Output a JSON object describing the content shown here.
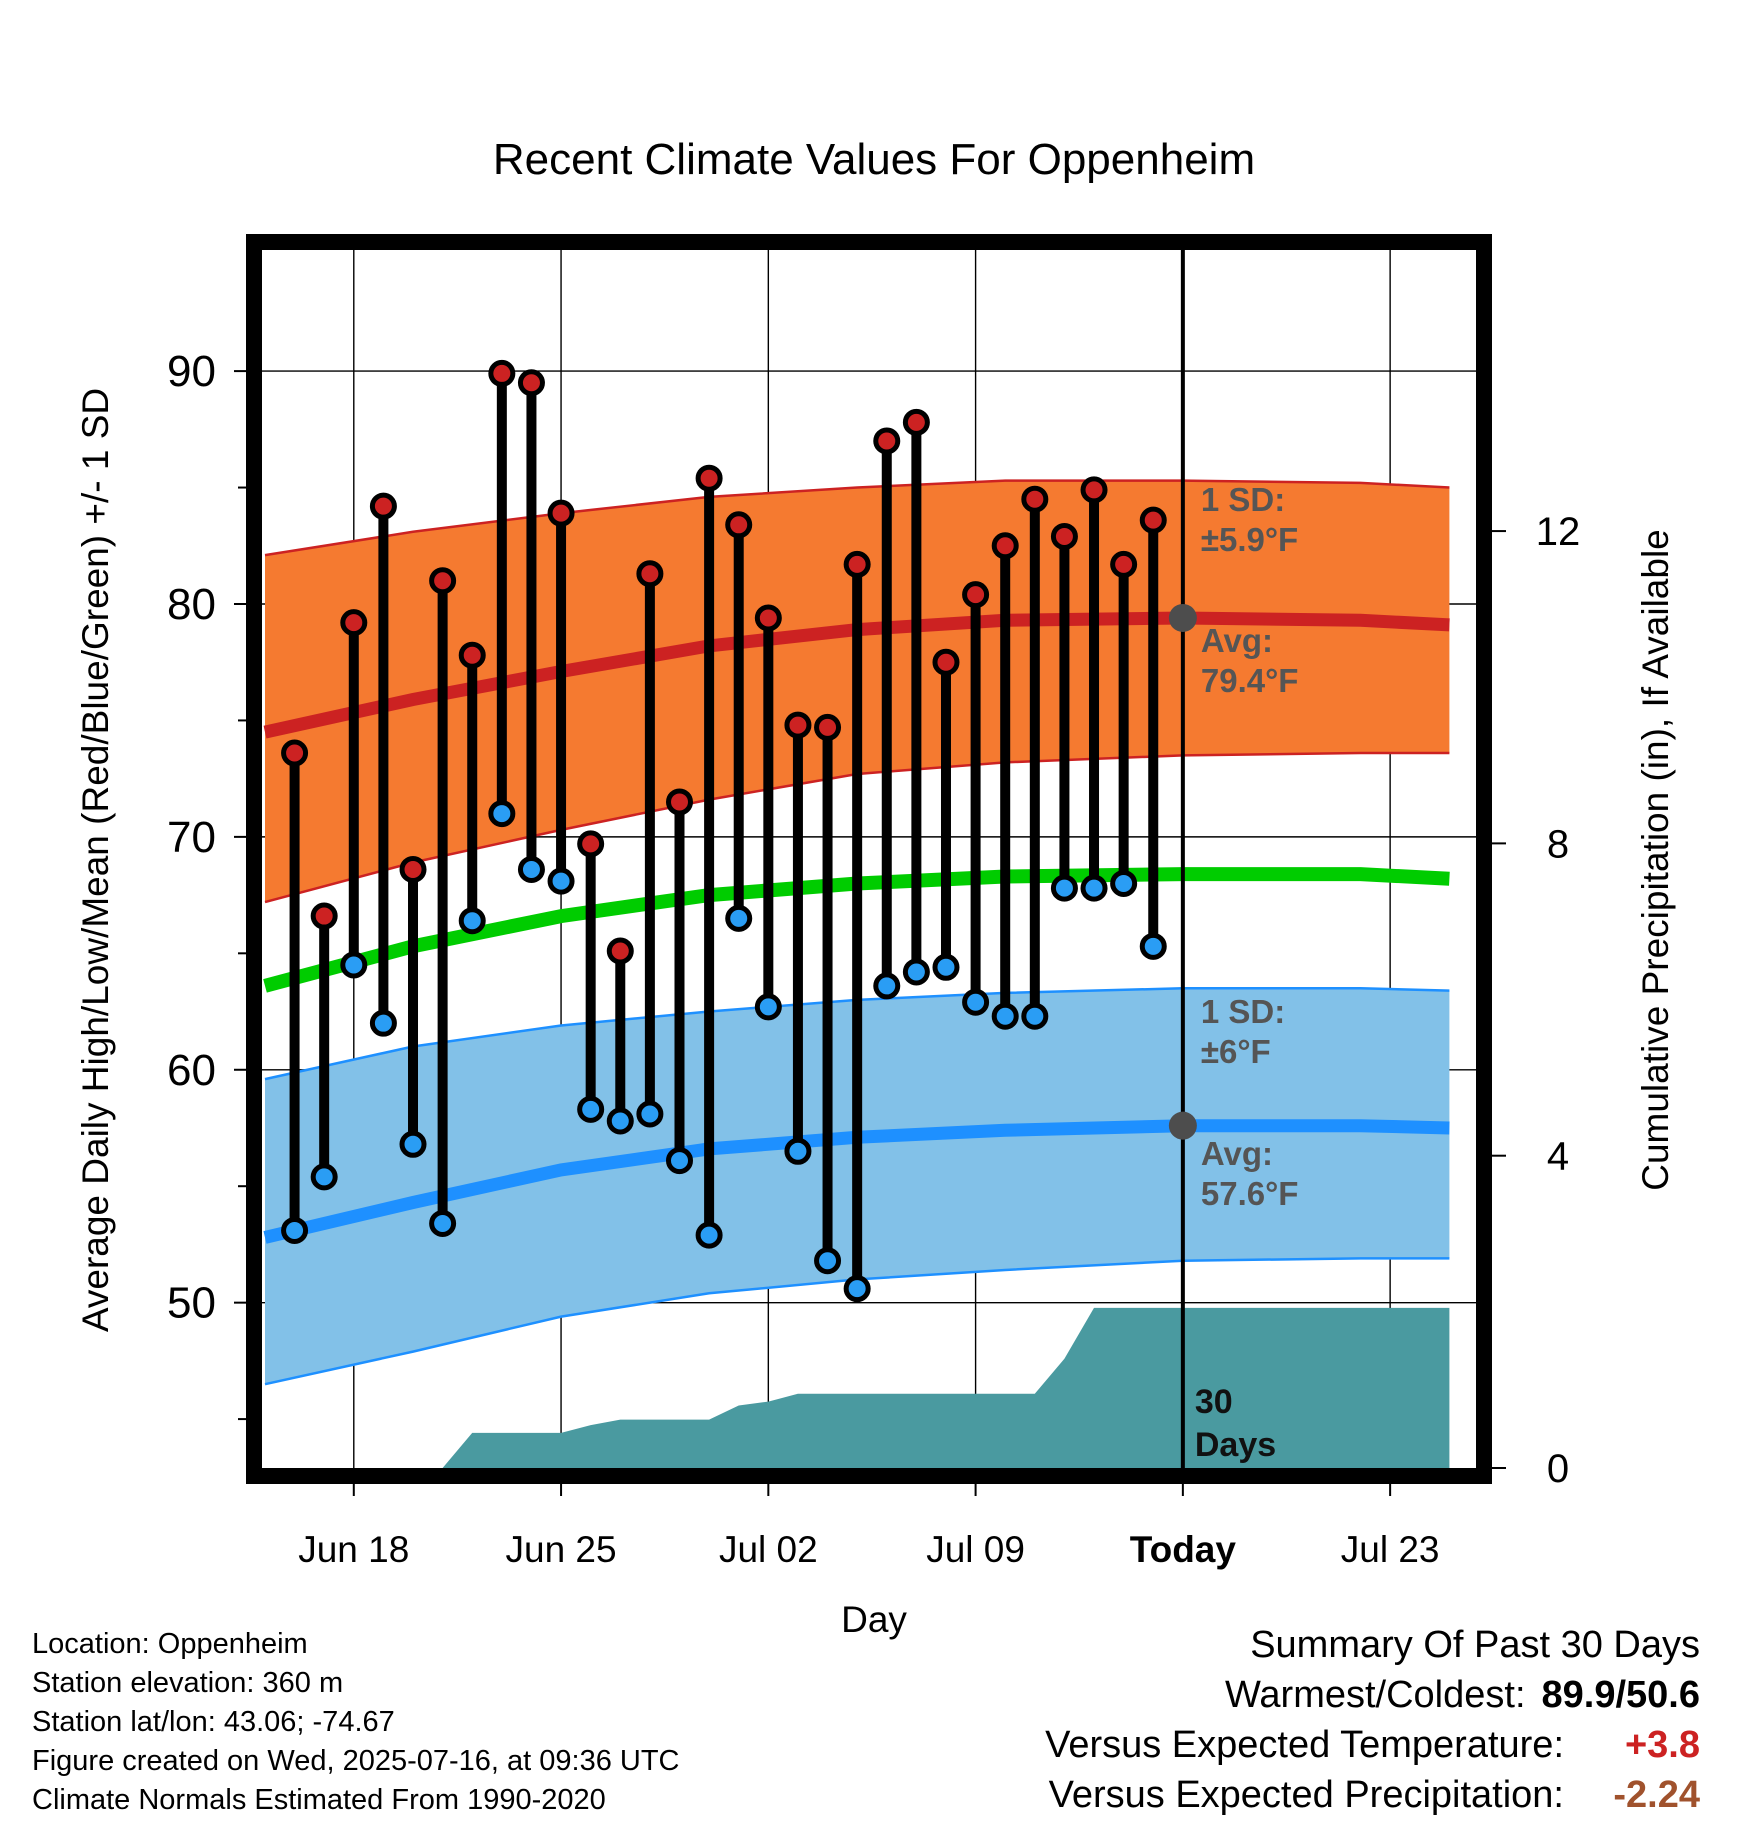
{
  "chart_data": {
    "type": "line",
    "title": "Recent Climate Values For Oppenheim",
    "xlabel": "Day",
    "ylabel": "Average Daily High/Low/Mean (Red/Blue/Green) +/- 1 SD",
    "y2label": "Cumulative Precipitation (in), If Available",
    "ylim": [
      42.9,
      95.2
    ],
    "y2lim": [
      0,
      15.6
    ],
    "yticks": [
      50,
      60,
      70,
      80,
      90
    ],
    "y2ticks": [
      0,
      4,
      8,
      12
    ],
    "xticks": [
      {
        "label": "Jun 18",
        "day": 3
      },
      {
        "label": "Jun 25",
        "day": 10
      },
      {
        "label": "Jul 02",
        "day": 17
      },
      {
        "label": "Jul 09",
        "day": 24
      },
      {
        "label": "Today",
        "day": 31
      },
      {
        "label": "Jul 23",
        "day": 38
      }
    ],
    "xlim": [
      -0.1,
      40.9
    ],
    "grid": true,
    "days": [
      1,
      2,
      3,
      4,
      5,
      6,
      7,
      8,
      9,
      10,
      11,
      12,
      13,
      14,
      15,
      16,
      17,
      18,
      19,
      20,
      21,
      22,
      23,
      24,
      25,
      26,
      27,
      28,
      29,
      30
    ],
    "observed_high": [
      73.6,
      66.6,
      79.2,
      84.2,
      68.6,
      81.0,
      77.8,
      89.9,
      89.5,
      83.9,
      69.7,
      65.1,
      81.3,
      71.5,
      85.4,
      83.4,
      79.4,
      74.8,
      74.7,
      81.7,
      87.0,
      87.8,
      77.5,
      80.4,
      82.5,
      84.5,
      82.9,
      84.9,
      81.7,
      83.6
    ],
    "observed_low": [
      53.1,
      55.4,
      64.5,
      62.0,
      56.8,
      53.4,
      66.4,
      71.0,
      68.6,
      68.1,
      58.3,
      57.8,
      58.1,
      56.1,
      52.9,
      66.5,
      62.7,
      56.5,
      51.8,
      50.6,
      63.6,
      64.2,
      64.4,
      62.9,
      62.3,
      62.3,
      67.8,
      67.8,
      68.0,
      65.3
    ],
    "normal_high": {
      "name": "Avg: 79.4°F",
      "sd_label": "1 SD: ±5.9°F",
      "x": [
        0,
        5,
        10,
        15,
        20,
        25,
        31,
        37,
        40
      ],
      "mean": [
        74.5,
        75.9,
        77.1,
        78.2,
        78.9,
        79.3,
        79.4,
        79.3,
        79.1
      ],
      "upper": [
        82.1,
        83.1,
        83.9,
        84.6,
        85.0,
        85.3,
        85.3,
        85.2,
        85.0
      ],
      "lower": [
        67.2,
        68.9,
        70.3,
        71.6,
        72.7,
        73.2,
        73.5,
        73.6,
        73.6
      ]
    },
    "normal_mean": {
      "x": [
        0,
        5,
        10,
        15,
        20,
        25,
        31,
        37,
        40
      ],
      "values": [
        63.6,
        65.3,
        66.6,
        67.5,
        68.0,
        68.3,
        68.4,
        68.4,
        68.2
      ]
    },
    "normal_low": {
      "name": "Avg: 57.6°F",
      "sd_label": "1 SD: ±6°F",
      "x": [
        0,
        5,
        10,
        15,
        20,
        25,
        31,
        37,
        40
      ],
      "mean": [
        52.8,
        54.3,
        55.7,
        56.6,
        57.1,
        57.4,
        57.6,
        57.6,
        57.5
      ],
      "upper": [
        59.6,
        61.0,
        61.9,
        62.5,
        63.0,
        63.3,
        63.5,
        63.5,
        63.4
      ],
      "lower": [
        46.5,
        47.9,
        49.4,
        50.4,
        51.0,
        51.4,
        51.8,
        51.9,
        51.9
      ]
    },
    "precip_cumulative": {
      "name": "30 Days",
      "x": [
        0,
        6,
        7,
        10,
        11,
        12,
        15,
        16,
        17,
        18,
        26,
        27,
        28,
        40
      ],
      "values": [
        0,
        0,
        0.45,
        0.45,
        0.55,
        0.62,
        0.62,
        0.8,
        0.85,
        0.95,
        0.95,
        1.4,
        2.05,
        2.05
      ]
    },
    "colors": {
      "high_band": "#f57a30",
      "high_mean": "#cc2222",
      "low_band": "#82c1e8",
      "low_mean": "#1e90ff",
      "mean_line": "#00cc00",
      "precip": "#4a9aa0",
      "high_marker": "#cc2222",
      "low_marker": "#2a9df4",
      "band_label": "#555555"
    }
  },
  "info": [
    "Location: Oppenheim",
    "Station elevation: 360 m",
    "Station lat/lon: 43.06; -74.67",
    "Figure created on Wed, 2025-07-16, at 09:36 UTC",
    "Climate Normals Estimated From 1990-2020"
  ],
  "summary": {
    "title": "Summary Of Past 30 Days",
    "rows": [
      {
        "label": "Warmest/Coldest:",
        "value": "89.9/50.6",
        "color": "#000000"
      },
      {
        "label": "Versus Expected Temperature:",
        "value": "+3.8",
        "color": "#cc2222"
      },
      {
        "label": "Versus Expected Precipitation:",
        "value": "-2.24",
        "color": "#a0522d"
      }
    ]
  }
}
